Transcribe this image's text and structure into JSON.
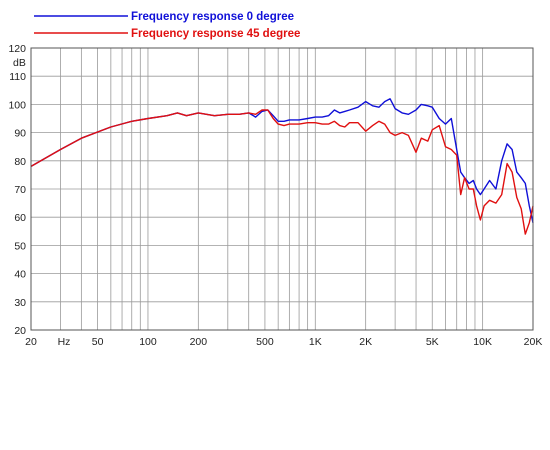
{
  "chart_data": {
    "type": "line",
    "x_scale": "log",
    "xlim": [
      20,
      20000
    ],
    "ylim": [
      20,
      120
    ],
    "grid": true,
    "legend_position": "top",
    "ylabel": "dB",
    "xlabel": "Hz",
    "x_ticks": [
      20,
      50,
      100,
      200,
      500,
      1000,
      2000,
      5000,
      10000,
      20000
    ],
    "x_tick_labels": [
      "20",
      "50",
      "100",
      "200",
      "500",
      "1K",
      "2K",
      "5K",
      "10K",
      "20K"
    ],
    "y_ticks": [
      20,
      30,
      40,
      50,
      60,
      70,
      80,
      90,
      100,
      110,
      120
    ],
    "y_tick_labels": [
      "20",
      "30",
      "40",
      "50",
      "60",
      "70",
      "80",
      "90",
      "100",
      "110",
      "120"
    ],
    "series": [
      {
        "name": "Frequency response 0 degree",
        "color": "#1010d8",
        "x": [
          20,
          30,
          40,
          60,
          80,
          100,
          130,
          150,
          170,
          200,
          250,
          300,
          350,
          400,
          440,
          480,
          520,
          560,
          600,
          650,
          700,
          800,
          900,
          1000,
          1100,
          1200,
          1300,
          1400,
          1500,
          1600,
          1800,
          2000,
          2200,
          2400,
          2600,
          2800,
          3000,
          3300,
          3600,
          4000,
          4300,
          4700,
          5000,
          5500,
          6000,
          6500,
          7000,
          7400,
          7800,
          8300,
          8800,
          9200,
          9700,
          10200,
          11000,
          12000,
          13000,
          14000,
          15000,
          16000,
          17000,
          18000,
          19000,
          20000
        ],
        "values": [
          78,
          84,
          88,
          92,
          94,
          95,
          96,
          97,
          96,
          97,
          96,
          96.5,
          96.5,
          97,
          95.5,
          97.5,
          98,
          96,
          94,
          94,
          94.5,
          94.5,
          95,
          95.5,
          95.5,
          96,
          98,
          97,
          97.5,
          98,
          99,
          101,
          99.5,
          99,
          101,
          102,
          98.5,
          97,
          96.5,
          98,
          100,
          99.5,
          99,
          95,
          93,
          95,
          84,
          76,
          74,
          72,
          73,
          70,
          68,
          70,
          73,
          70,
          80,
          86,
          84,
          76,
          74,
          72,
          64,
          58
        ]
      },
      {
        "name": "Frequency response 45 degree",
        "color": "#e01010",
        "x": [
          20,
          30,
          40,
          60,
          80,
          100,
          130,
          150,
          170,
          200,
          250,
          300,
          350,
          400,
          440,
          480,
          520,
          560,
          600,
          650,
          700,
          800,
          900,
          1000,
          1100,
          1200,
          1300,
          1400,
          1500,
          1600,
          1800,
          2000,
          2200,
          2400,
          2600,
          2800,
          3000,
          3300,
          3600,
          4000,
          4300,
          4700,
          5000,
          5500,
          6000,
          6500,
          7000,
          7400,
          7800,
          8300,
          8800,
          9200,
          9700,
          10200,
          11000,
          12000,
          13000,
          14000,
          15000,
          16000,
          17000,
          18000,
          19000,
          20000
        ],
        "values": [
          78,
          84,
          88,
          92,
          94,
          95,
          96,
          97,
          96,
          97,
          96,
          96.5,
          96.5,
          97,
          96.5,
          98,
          98,
          95,
          93,
          92.5,
          93,
          93,
          93.5,
          93.5,
          93,
          93,
          94,
          92.5,
          92,
          93.5,
          93.5,
          90.5,
          92.5,
          94,
          93,
          90,
          89,
          90,
          89,
          83,
          88,
          87,
          91,
          92.5,
          85,
          84,
          82,
          68,
          74,
          70,
          70,
          64,
          59,
          64,
          66,
          65,
          68,
          79,
          76,
          67,
          63,
          54,
          58,
          64
        ]
      }
    ]
  }
}
